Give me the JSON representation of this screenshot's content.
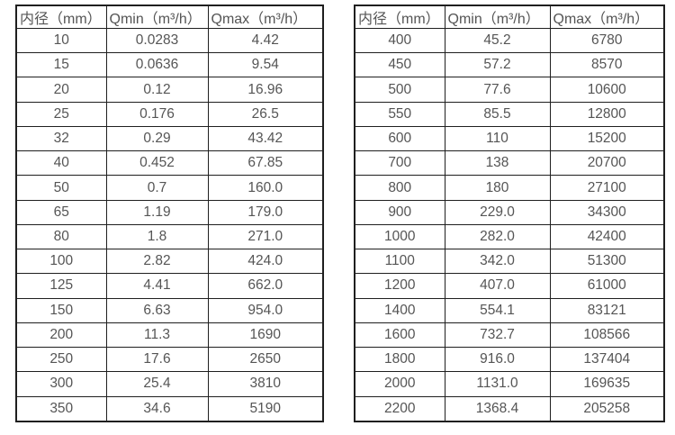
{
  "colors": {
    "background": "#ffffff",
    "border": "#1f1f1f",
    "text": "#555555"
  },
  "tables": [
    {
      "id": "small-diameters",
      "headers": [
        "内径（mm）",
        "Qmin（m³/h）",
        "Qmax（m³/h）"
      ],
      "rows": [
        [
          "10",
          "0.0283",
          "4.42"
        ],
        [
          "15",
          "0.0636",
          "9.54"
        ],
        [
          "20",
          "0.12",
          "16.96"
        ],
        [
          "25",
          "0.176",
          "26.5"
        ],
        [
          "32",
          "0.29",
          "43.42"
        ],
        [
          "40",
          "0.452",
          "67.85"
        ],
        [
          "50",
          "0.7",
          "160.0"
        ],
        [
          "65",
          "1.19",
          "179.0"
        ],
        [
          "80",
          "1.8",
          "271.0"
        ],
        [
          "100",
          "2.82",
          "424.0"
        ],
        [
          "125",
          "4.41",
          "662.0"
        ],
        [
          "150",
          "6.63",
          "954.0"
        ],
        [
          "200",
          "11.3",
          "1690"
        ],
        [
          "250",
          "17.6",
          "2650"
        ],
        [
          "300",
          "25.4",
          "3810"
        ],
        [
          "350",
          "34.6",
          "5190"
        ]
      ]
    },
    {
      "id": "large-diameters",
      "headers": [
        "内径（mm）",
        "Qmin（m³/h）",
        "Qmax（m³/h）"
      ],
      "rows": [
        [
          "400",
          "45.2",
          "6780"
        ],
        [
          "450",
          "57.2",
          "8570"
        ],
        [
          "500",
          "77.6",
          "10600"
        ],
        [
          "550",
          "85.5",
          "12800"
        ],
        [
          "600",
          "110",
          "15200"
        ],
        [
          "700",
          "138",
          "20700"
        ],
        [
          "800",
          "180",
          "27100"
        ],
        [
          "900",
          "229.0",
          "34300"
        ],
        [
          "1000",
          "282.0",
          "42400"
        ],
        [
          "1100",
          "342.0",
          "51300"
        ],
        [
          "1200",
          "407.0",
          "61000"
        ],
        [
          "1400",
          "554.1",
          "83121"
        ],
        [
          "1600",
          "732.7",
          "108566"
        ],
        [
          "1800",
          "916.0",
          "137404"
        ],
        [
          "2000",
          "1131.0",
          "169635"
        ],
        [
          "2200",
          "1368.4",
          "205258"
        ]
      ]
    }
  ]
}
